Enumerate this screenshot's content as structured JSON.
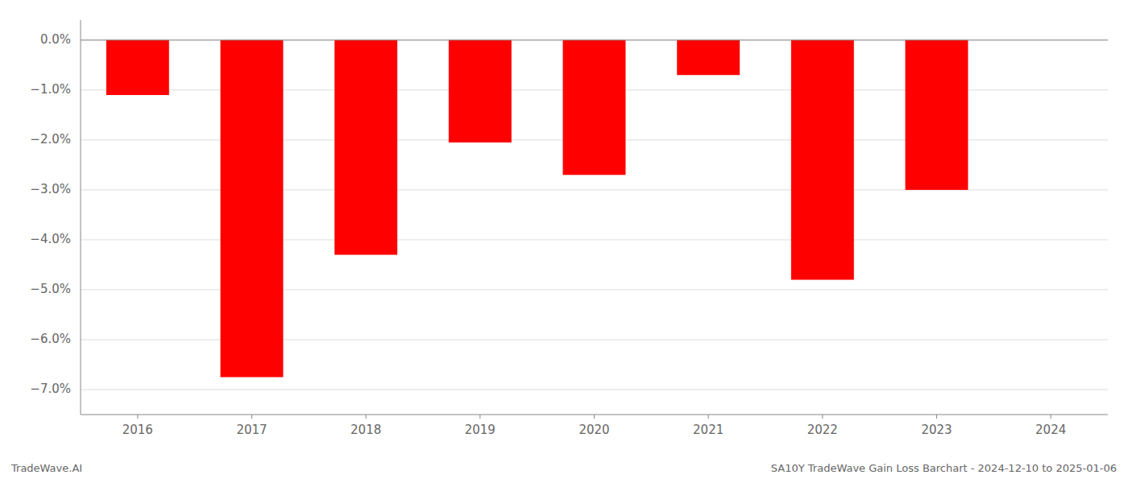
{
  "chart_data": {
    "type": "bar",
    "title": "SA10Y TradeWave Gain Loss Barchart - 2024-12-10 to 2025-01-06",
    "annotations": [
      "TradeWave.AI"
    ],
    "categories": [
      "2016",
      "2017",
      "2018",
      "2019",
      "2020",
      "2021",
      "2022",
      "2023",
      "2024"
    ],
    "values": [
      -1.1,
      -6.75,
      -4.3,
      -2.05,
      -2.7,
      -0.7,
      -4.8,
      -3.0,
      0
    ],
    "color": "#ff0000",
    "ylim": [
      -7.5,
      0.4
    ],
    "yticks": [
      {
        "value": 0.0,
        "label": "0.0%"
      },
      {
        "value": -1.0,
        "label": "−1.0%"
      },
      {
        "value": -2.0,
        "label": "−2.0%"
      },
      {
        "value": -3.0,
        "label": "−3.0%"
      },
      {
        "value": -4.0,
        "label": "−4.0%"
      },
      {
        "value": -5.0,
        "label": "−5.0%"
      },
      {
        "value": -6.0,
        "label": "−6.0%"
      },
      {
        "value": -7.0,
        "label": "−7.0%"
      }
    ],
    "grid": true
  }
}
